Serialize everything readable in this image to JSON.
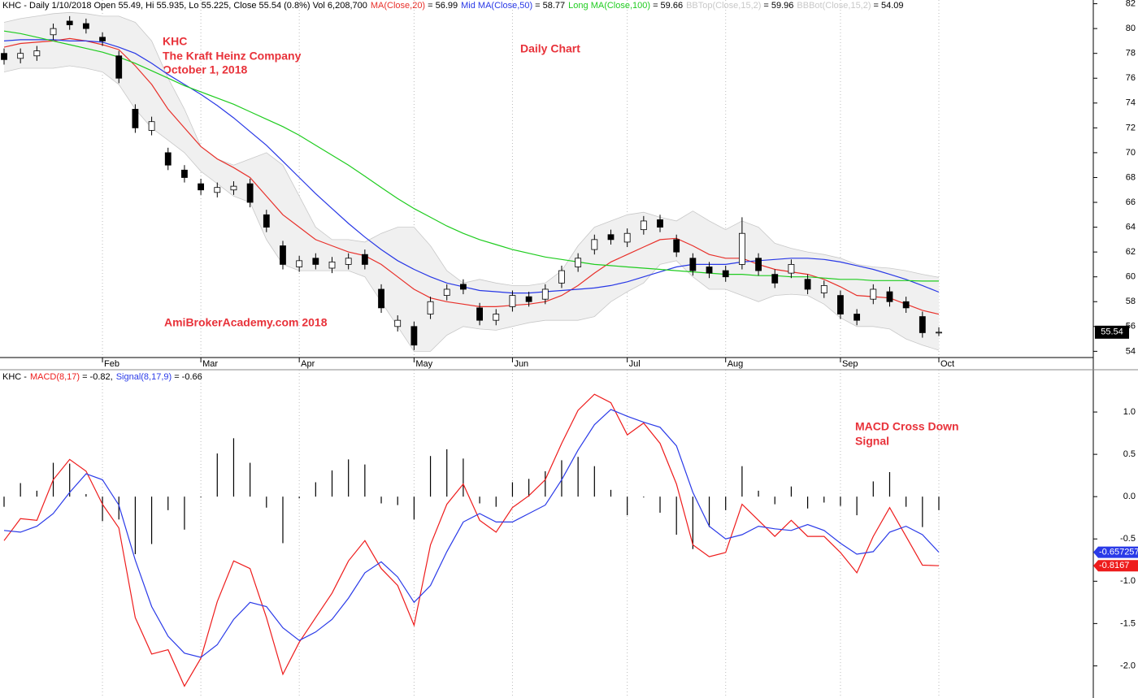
{
  "chart_data": [
    {
      "type": "candlestick",
      "header": "KHC - Daily 1/10/2018 Open 55.49, Hi 55.935, Lo 55.225, Close 55.54 (0.8%) Vol 6,208,700",
      "annotations": [
        "KHC",
        "The Kraft Heinz Company",
        "October 1, 2018",
        "Daily Chart",
        "AmiBrokerAcademy.com  2018"
      ],
      "categories": [
        null,
        null,
        null,
        null,
        null,
        null,
        "Feb",
        null,
        null,
        null,
        null,
        null,
        "Mar",
        null,
        null,
        null,
        null,
        null,
        "Apr",
        null,
        null,
        null,
        null,
        null,
        null,
        "May",
        null,
        null,
        null,
        null,
        null,
        "Jun",
        null,
        null,
        null,
        null,
        null,
        null,
        "Jul",
        null,
        null,
        null,
        null,
        null,
        "Aug",
        null,
        null,
        null,
        null,
        null,
        null,
        "Sep",
        null,
        null,
        null,
        null,
        null,
        "Oct"
      ],
      "open": [
        78.0,
        77.6,
        77.8,
        79.5,
        80.6,
        80.4,
        79.3,
        77.8,
        73.5,
        71.8,
        70.0,
        68.6,
        67.5,
        66.8,
        67.0,
        67.5,
        65.0,
        62.5,
        60.8,
        61.5,
        60.7,
        61.0,
        61.8,
        59.0,
        56.0,
        56.0,
        57.0,
        58.5,
        59.4,
        57.5,
        56.5,
        57.6,
        58.4,
        58.2,
        59.5,
        60.8,
        62.2,
        63.4,
        62.8,
        63.8,
        64.6,
        63.0,
        61.5,
        60.8,
        60.5,
        61.0,
        61.5,
        60.2,
        60.3,
        59.8,
        58.7,
        58.5,
        57.0,
        58.2,
        58.8,
        58.0,
        56.8,
        55.49
      ],
      "high": [
        78.4,
        78.4,
        78.6,
        80.4,
        81.0,
        80.8,
        79.7,
        78.2,
        73.9,
        72.9,
        70.4,
        69.0,
        67.9,
        67.6,
        67.7,
        67.9,
        65.4,
        62.9,
        61.7,
        61.9,
        61.6,
        61.9,
        62.2,
        59.4,
        56.9,
        56.4,
        58.4,
        59.4,
        59.8,
        57.9,
        57.4,
        58.9,
        58.8,
        59.4,
        60.9,
        61.9,
        63.4,
        63.8,
        63.9,
        64.9,
        65.0,
        63.4,
        61.9,
        61.2,
        60.9,
        64.8,
        61.9,
        60.6,
        61.4,
        60.2,
        59.7,
        58.9,
        57.4,
        59.4,
        59.2,
        58.4,
        57.2,
        55.935
      ],
      "low": [
        77.1,
        77.2,
        77.4,
        79.1,
        79.9,
        79.6,
        78.6,
        75.6,
        71.6,
        71.4,
        68.6,
        67.6,
        66.6,
        66.4,
        66.6,
        65.6,
        63.6,
        60.6,
        60.4,
        60.6,
        60.3,
        60.6,
        60.6,
        57.1,
        55.6,
        54.1,
        56.6,
        58.1,
        58.6,
        56.1,
        56.1,
        57.2,
        57.6,
        57.8,
        59.1,
        60.4,
        61.8,
        62.6,
        62.4,
        63.4,
        63.6,
        61.6,
        60.1,
        59.9,
        59.6,
        60.6,
        60.1,
        59.1,
        59.9,
        58.6,
        58.3,
        56.6,
        56.1,
        57.8,
        57.6,
        57.1,
        55.1,
        55.225
      ],
      "close": [
        77.5,
        78,
        78.2,
        80,
        80.3,
        80,
        79,
        76,
        72,
        72.5,
        69,
        68,
        67,
        67.2,
        67.3,
        66,
        64,
        61,
        61.3,
        61,
        61.2,
        61.5,
        61,
        57.5,
        56.5,
        54.5,
        58,
        59,
        59,
        56.5,
        57,
        58.5,
        58,
        59,
        60.5,
        61.5,
        63,
        63,
        63.5,
        64.5,
        64,
        62,
        60.5,
        60.3,
        60,
        63.5,
        60.5,
        59.5,
        61,
        59,
        59.3,
        57,
        56.5,
        59,
        58,
        57.5,
        55.5,
        55.54
      ],
      "series": [
        {
          "name": "MA(Close,20)",
          "last_label": "= 56.99",
          "color": "#e8302a",
          "values": [
            78.5,
            78.8,
            78.9,
            79,
            79.2,
            79,
            78.7,
            78.3,
            77,
            75.5,
            73.5,
            72,
            70.5,
            69.5,
            68.8,
            68,
            66.5,
            65,
            64,
            63,
            62.5,
            62,
            61.7,
            61,
            60,
            59,
            58.3,
            58,
            57.8,
            57.6,
            57.6,
            57.7,
            57.8,
            58,
            58.5,
            59.3,
            60.3,
            61.2,
            61.8,
            62.4,
            63,
            63.1,
            62.5,
            61.8,
            61.5,
            61.5,
            61,
            60.6,
            60.4,
            60.2,
            59.8,
            59.2,
            58.5,
            58.4,
            58.3,
            57.8,
            57.3,
            56.99
          ]
        },
        {
          "name": "Mid MA(Close,50)",
          "last_label": "= 58.77",
          "color": "#2838e6",
          "values": [
            79,
            79.1,
            79.1,
            79.1,
            79,
            79,
            78.9,
            78.5,
            78,
            77.2,
            76.3,
            75.5,
            74.7,
            73.8,
            72.8,
            71.7,
            70.6,
            69.3,
            68,
            66.7,
            65.5,
            64.3,
            63.2,
            62.2,
            61.3,
            60.6,
            60,
            59.5,
            59.2,
            58.9,
            58.8,
            58.7,
            58.7,
            58.8,
            58.9,
            59,
            59.1,
            59.3,
            59.6,
            60,
            60.4,
            60.8,
            61,
            61,
            61,
            61.2,
            61.3,
            61.4,
            61.5,
            61.5,
            61.4,
            61.2,
            60.9,
            60.6,
            60.2,
            59.8,
            59.3,
            58.77
          ]
        },
        {
          "name": "Long MA(Close,100)",
          "last_label": "= 59.66",
          "color": "#1fcc1f",
          "values": [
            79.8,
            79.6,
            79.3,
            79,
            78.7,
            78.4,
            78.1,
            77.7,
            77.2,
            76.6,
            76,
            75.4,
            74.9,
            74.4,
            73.9,
            73.3,
            72.7,
            72.1,
            71.4,
            70.6,
            69.8,
            69,
            68.1,
            67.2,
            66.3,
            65.5,
            64.8,
            64.1,
            63.5,
            63,
            62.6,
            62.2,
            61.9,
            61.6,
            61.4,
            61.2,
            61,
            60.9,
            60.8,
            60.7,
            60.6,
            60.5,
            60.4,
            60.3,
            60.2,
            60.2,
            60.1,
            60.1,
            60,
            60,
            59.9,
            59.8,
            59.8,
            59.7,
            59.7,
            59.7,
            59.66,
            59.66
          ]
        }
      ],
      "bollinger": [
        {
          "name": "BBTop(Close,15,2)",
          "last_label": "= 59.96",
          "color": "#c8c8c8",
          "values": [
            80.5,
            80.8,
            81,
            81.2,
            81.3,
            81.2,
            81,
            81,
            80.5,
            79,
            76,
            73.5,
            70.5,
            69.5,
            69,
            69.5,
            70,
            69,
            66.5,
            64,
            63,
            63,
            62.8,
            63.5,
            64,
            64,
            62.5,
            60.5,
            59.5,
            59.8,
            59.5,
            59.3,
            59.3,
            59.5,
            60.5,
            62.5,
            64,
            64.5,
            65,
            65.2,
            64.8,
            64.5,
            65.3,
            64.5,
            63.8,
            64.5,
            64,
            62.7,
            62.3,
            62,
            61.8,
            61.5,
            61,
            60.8,
            60.7,
            60.5,
            60.2,
            59.96
          ]
        },
        {
          "name": "BBBot(Close,15,2)",
          "last_label": "= 54.09",
          "color": "#c8c8c8",
          "values": [
            76.5,
            76.8,
            76.8,
            76.8,
            77,
            76.8,
            76.5,
            75.5,
            73.5,
            72,
            71,
            70,
            68.5,
            67.5,
            66.5,
            66,
            63,
            61,
            60.5,
            60.5,
            60.5,
            60.5,
            60,
            58,
            56,
            54,
            54,
            55.3,
            56,
            55.8,
            55.7,
            56,
            56.3,
            56.5,
            56.5,
            56.5,
            56.8,
            58,
            58.8,
            59.5,
            61,
            61.3,
            60,
            59,
            59,
            58.5,
            58,
            58.5,
            58.6,
            58.5,
            57.8,
            56.7,
            56,
            56,
            55.8,
            55,
            54.5,
            54.09
          ]
        }
      ],
      "band_fill": "#f0f0f0",
      "up_color": "#ffffff",
      "down_color": "#000000",
      "ylim": [
        53.5,
        82.3
      ],
      "yticks": [
        54,
        56,
        58,
        60,
        62,
        64,
        66,
        68,
        70,
        72,
        74,
        76,
        78,
        80,
        82
      ],
      "grid": true
    },
    {
      "type": "macd",
      "header": "KHC -",
      "annotations": [
        "MACD Cross Down",
        "Signal"
      ],
      "series": [
        {
          "name": "MACD(8,17)",
          "last_label": "= -0.82,",
          "color": "#ee1c1c",
          "values": [
            -0.52,
            -0.26,
            -0.28,
            0.2,
            0.44,
            0.3,
            -0.09,
            -0.37,
            -1.43,
            -1.86,
            -1.81,
            -2.24,
            -1.91,
            -1.24,
            -0.76,
            -0.85,
            -1.43,
            -2.1,
            -1.72,
            -1.43,
            -1.14,
            -0.76,
            -0.52,
            -0.85,
            -1.05,
            -1.52,
            -0.57,
            -0.09,
            0.15,
            -0.28,
            -0.42,
            -0.13,
            0.01,
            0.2,
            0.63,
            1.02,
            1.21,
            1.11,
            0.73,
            0.87,
            0.63,
            0.15,
            -0.57,
            -0.71,
            -0.66,
            -0.09,
            -0.28,
            -0.47,
            -0.28,
            -0.47,
            -0.47,
            -0.66,
            -0.9,
            -0.47,
            -0.13,
            -0.47,
            -0.81,
            -0.8167
          ]
        },
        {
          "name": "Signal(8,17,9)",
          "last_label": "= -0.66",
          "color": "#2a3ae8",
          "values": [
            -0.4,
            -0.42,
            -0.35,
            -0.2,
            0.05,
            0.27,
            0.2,
            -0.1,
            -0.75,
            -1.3,
            -1.65,
            -1.85,
            -1.9,
            -1.75,
            -1.45,
            -1.25,
            -1.3,
            -1.55,
            -1.7,
            -1.6,
            -1.45,
            -1.2,
            -0.9,
            -0.77,
            -0.95,
            -1.25,
            -1.05,
            -0.65,
            -0.3,
            -0.2,
            -0.3,
            -0.3,
            -0.2,
            -0.1,
            0.2,
            0.55,
            0.85,
            1.03,
            0.95,
            0.88,
            0.82,
            0.6,
            0.05,
            -0.35,
            -0.5,
            -0.45,
            -0.35,
            -0.38,
            -0.4,
            -0.33,
            -0.4,
            -0.55,
            -0.68,
            -0.65,
            -0.42,
            -0.35,
            -0.45,
            -0.657257
          ]
        }
      ],
      "histogram": [
        -0.12,
        0.16,
        0.07,
        0.4,
        0.39,
        0.03,
        -0.29,
        -0.27,
        -0.68,
        -0.56,
        -0.16,
        -0.39,
        -0.01,
        0.51,
        0.69,
        0.4,
        -0.13,
        -0.55,
        -0.02,
        0.17,
        0.31,
        0.44,
        0.38,
        -0.08,
        -0.1,
        -0.27,
        0.48,
        0.56,
        0.45,
        -0.08,
        -0.12,
        0.17,
        0.21,
        0.3,
        0.43,
        0.47,
        0.36,
        0.08,
        -0.22,
        -0.01,
        -0.19,
        -0.45,
        -0.62,
        -0.36,
        -0.16,
        0.36,
        0.07,
        -0.09,
        0.12,
        -0.14,
        -0.07,
        -0.11,
        -0.22,
        0.18,
        0.29,
        -0.12,
        -0.36,
        -0.16
      ],
      "histogram_color": "#000000",
      "ylim": [
        -2.38,
        1.5
      ],
      "yticks": [
        {
          "value": 1,
          "label": "1.0"
        },
        0.5,
        {
          "value": 0,
          "label": "0.0"
        },
        -0.5,
        {
          "value": -1,
          "label": "-1.0"
        },
        -1.5,
        {
          "value": -2,
          "label": "-2.0"
        }
      ],
      "grid": true
    }
  ]
}
